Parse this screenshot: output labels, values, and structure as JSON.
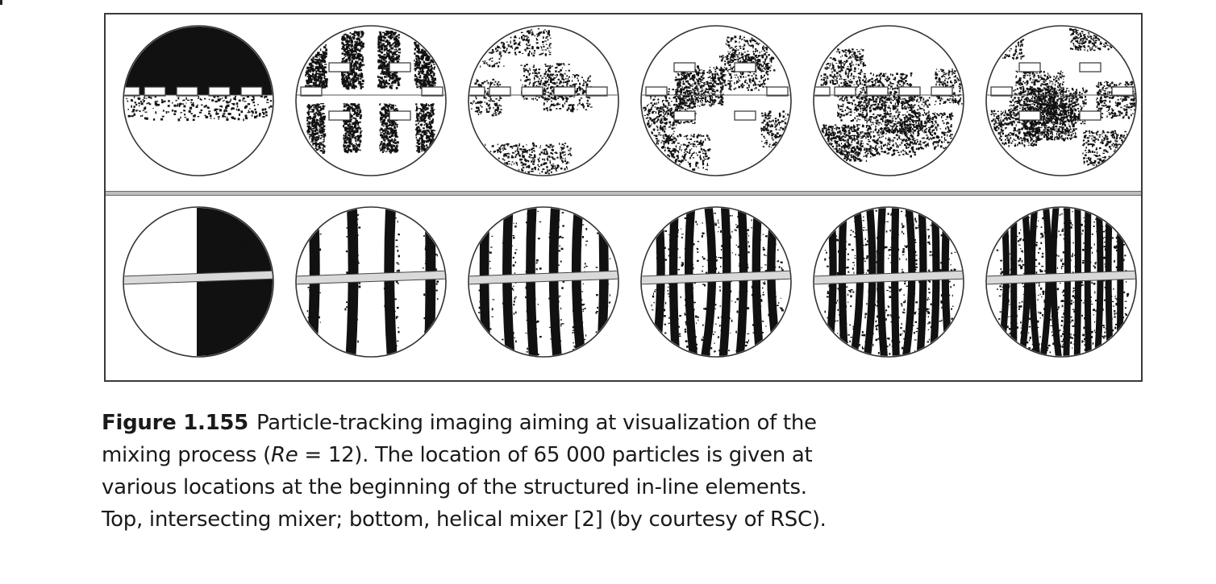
{
  "figure": {
    "label": "Figure 1.155",
    "caption": {
      "line1": "Particle-tracking imaging aiming at visualization of the",
      "line2_a": "mixing process (",
      "line2_re": "Re",
      "line2_b": " = 12). The location of 65 000 particles is given at",
      "line3": "various locations at the beginning of the structured in-line elements.",
      "line4": "Top, intersecting mixer; bottom, helical mixer [2] (by courtesy of RSC)."
    }
  },
  "panels": {
    "top_row": [
      "intersecting-mixer-stage-1",
      "intersecting-mixer-stage-2",
      "intersecting-mixer-stage-3",
      "intersecting-mixer-stage-4",
      "intersecting-mixer-stage-5",
      "intersecting-mixer-stage-6"
    ],
    "bottom_row": [
      "helical-mixer-stage-1",
      "helical-mixer-stage-2",
      "helical-mixer-stage-3",
      "helical-mixer-stage-4",
      "helical-mixer-stage-5",
      "helical-mixer-stage-6"
    ]
  },
  "colors": {
    "ink": "#111111",
    "frame": "#3a3a3a",
    "divider": "#bdbdbd"
  }
}
